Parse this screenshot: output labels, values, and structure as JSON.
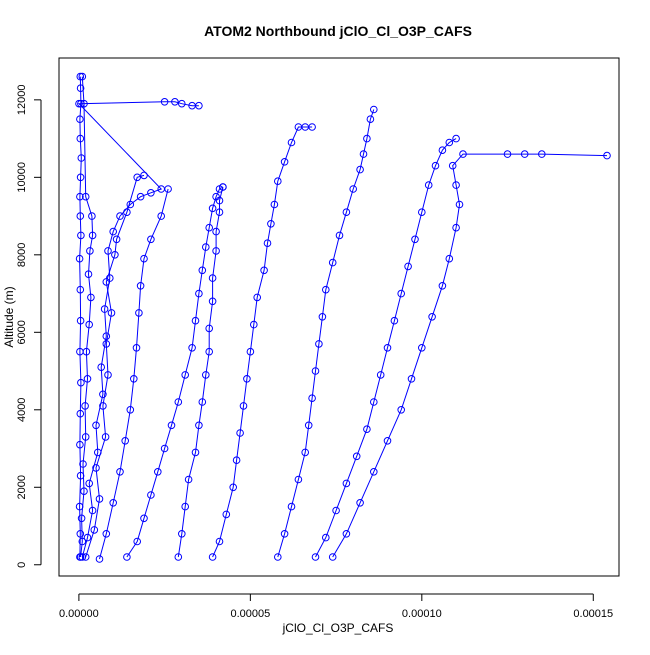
{
  "chart_data": {
    "type": "line",
    "title": "ATOM2 Northbound jClO_Cl_O3P_CAFS",
    "xlabel": "jClO_Cl_O3P_CAFS",
    "ylabel": "Altitude (m)",
    "xlim": [
      -5.8e-06,
      0.0001575
    ],
    "ylim": [
      -290,
      13080
    ],
    "x_ticks": [
      0,
      5e-05,
      0.0001,
      0.00015
    ],
    "x_tick_labels": [
      "0.00000",
      "0.00005",
      "0.00010",
      "0.00015"
    ],
    "y_ticks": [
      0,
      2000,
      4000,
      6000,
      8000,
      10000,
      12000
    ],
    "y_tick_labels": [
      "0",
      "2000",
      "4000",
      "6000",
      "8000",
      "10000",
      "12000"
    ],
    "color": "#0000ff",
    "marker": "open-circle",
    "grid": false,
    "legend": "none",
    "series": [
      {
        "x": [
          3e-07,
          4e-07,
          2e-07,
          5e-07,
          3e-07,
          4e-07,
          6e-07,
          3e-07,
          5e-07,
          4e-07,
          2e-07,
          6e-07,
          4e-07,
          3e-07,
          5e-07,
          7e-07,
          4e-07,
          3e-07,
          6e-07,
          5e-07,
          4e-07
        ],
        "y": [
          200,
          800,
          1500,
          2300,
          3100,
          3900,
          4700,
          5500,
          6300,
          7100,
          7900,
          8500,
          9000,
          9500,
          10000,
          10500,
          11000,
          11500,
          11900,
          12300,
          12600
        ]
      },
      {
        "x": [
          5e-07,
          1e-06,
          8e-07,
          1.5e-06,
          1.2e-06,
          2e-06,
          1.8e-06,
          2.5e-06,
          2.2e-06,
          3e-06,
          3.5e-06,
          2.8e-06,
          3.2e-06,
          4e-06,
          3.8e-06,
          2e-06,
          1.5e-06,
          1e-06
        ],
        "y": [
          200,
          600,
          1200,
          1900,
          2600,
          3300,
          4100,
          4800,
          5500,
          6200,
          6900,
          7500,
          8100,
          8500,
          9000,
          9500,
          11900,
          12600
        ]
      },
      {
        "x": [
          1e-06,
          2.5e-06,
          4e-06,
          3e-06,
          5.5e-06,
          5e-06,
          7e-06,
          6.5e-06,
          8e-06,
          7.5e-06,
          9e-06,
          8.5e-06,
          1e-05,
          1.2e-05,
          1.5e-05,
          1.8e-05,
          2.1e-05,
          2.4e-05,
          2e-08,
          2.5e-05,
          2.8e-05,
          3e-05,
          3.3e-05,
          3.5e-05
        ],
        "y": [
          200,
          700,
          1400,
          2100,
          2900,
          3600,
          4400,
          5100,
          5900,
          6600,
          7400,
          8100,
          8600,
          9000,
          9300,
          9500,
          9600,
          9700,
          11900,
          11950,
          11950,
          11900,
          11850,
          11850
        ]
      },
      {
        "x": [
          2e-06,
          4.5e-06,
          6e-06,
          5e-06,
          7.8e-06,
          7e-06,
          8.5e-06,
          8e-06,
          9.5e-06,
          8e-06,
          1.05e-05,
          1.1e-05,
          1.4e-05,
          1.7e-05,
          1.9e-05
        ],
        "y": [
          200,
          900,
          1700,
          2500,
          3300,
          4100,
          4900,
          5700,
          6500,
          7300,
          8000,
          8400,
          9100,
          10000,
          10050
        ]
      },
      {
        "x": [
          6e-06,
          8e-06,
          1e-05,
          1.2e-05,
          1.35e-05,
          1.5e-05,
          1.6e-05,
          1.68e-05,
          1.75e-05,
          1.8e-05,
          1.9e-05,
          2.1e-05,
          2.4e-05,
          2.6e-05
        ],
        "y": [
          150,
          800,
          1600,
          2400,
          3200,
          4000,
          4800,
          5600,
          6500,
          7200,
          7900,
          8400,
          9000,
          9700
        ]
      },
      {
        "x": [
          1.4e-05,
          1.7e-05,
          1.9e-05,
          2.1e-05,
          2.3e-05,
          2.5e-05,
          2.7e-05,
          2.9e-05,
          3.1e-05,
          3.3e-05,
          3.4e-05,
          3.5e-05,
          3.6e-05,
          3.7e-05,
          3.8e-05,
          3.9e-05,
          4e-05,
          4.1e-05,
          4.2e-05
        ],
        "y": [
          200,
          600,
          1200,
          1800,
          2400,
          3000,
          3600,
          4200,
          4900,
          5600,
          6300,
          7000,
          7600,
          8200,
          8700,
          9200,
          9500,
          9700,
          9750
        ]
      },
      {
        "x": [
          2.9e-05,
          3e-05,
          3.1e-05,
          3.2e-05,
          3.4e-05,
          3.5e-05,
          3.6e-05,
          3.7e-05,
          3.8e-05,
          3.8e-05,
          3.9e-05,
          3.9e-05,
          4e-05,
          4e-05,
          4.1e-05,
          4.1e-05,
          4.2e-05
        ],
        "y": [
          200,
          800,
          1500,
          2200,
          2900,
          3600,
          4200,
          4900,
          5500,
          6100,
          6800,
          7400,
          8100,
          8600,
          9100,
          9400,
          9750
        ]
      },
      {
        "x": [
          3.9e-05,
          4.1e-05,
          4.3e-05,
          4.5e-05,
          4.6e-05,
          4.7e-05,
          4.8e-05,
          4.9e-05,
          5e-05,
          5.1e-05,
          5.2e-05,
          5.4e-05,
          5.5e-05,
          5.6e-05,
          5.7e-05,
          5.8e-05,
          6e-05,
          6.2e-05,
          6.4e-05,
          6.6e-05,
          6.8e-05
        ],
        "y": [
          200,
          600,
          1300,
          2000,
          2700,
          3400,
          4100,
          4800,
          5500,
          6200,
          6900,
          7600,
          8300,
          8800,
          9300,
          9900,
          10400,
          10900,
          11300,
          11300,
          11300
        ]
      },
      {
        "x": [
          5.8e-05,
          6e-05,
          6.2e-05,
          6.4e-05,
          6.6e-05,
          6.7e-05,
          6.8e-05,
          6.9e-05,
          7e-05,
          7.1e-05,
          7.2e-05,
          7.4e-05,
          7.6e-05,
          7.8e-05,
          8e-05,
          8.2e-05,
          8.3e-05,
          8.4e-05,
          8.5e-05,
          8.6e-05
        ],
        "y": [
          200,
          800,
          1500,
          2200,
          2900,
          3600,
          4300,
          5000,
          5700,
          6400,
          7100,
          7800,
          8500,
          9100,
          9700,
          10200,
          10600,
          11000,
          11500,
          11750
        ]
      },
      {
        "x": [
          6.9e-05,
          7.2e-05,
          7.5e-05,
          7.8e-05,
          8.1e-05,
          8.4e-05,
          8.6e-05,
          8.8e-05,
          9e-05,
          9.2e-05,
          9.4e-05,
          9.6e-05,
          9.8e-05,
          0.0001,
          0.000102,
          0.000104,
          0.000106,
          0.000108,
          0.00011
        ],
        "y": [
          200,
          700,
          1400,
          2100,
          2800,
          3500,
          4200,
          4900,
          5600,
          6300,
          7000,
          7700,
          8400,
          9100,
          9800,
          10300,
          10700,
          10900,
          11000
        ]
      },
      {
        "x": [
          7.4e-05,
          7.8e-05,
          8.2e-05,
          8.6e-05,
          9e-05,
          9.4e-05,
          9.7e-05,
          0.0001,
          0.000103,
          0.000106,
          0.000108,
          0.00011,
          0.000111,
          0.00011,
          0.000109,
          0.000112,
          0.000125,
          0.00013,
          0.000135,
          0.000154
        ],
        "y": [
          200,
          800,
          1600,
          2400,
          3200,
          4000,
          4800,
          5600,
          6400,
          7200,
          7900,
          8700,
          9300,
          9800,
          10300,
          10600,
          10600,
          10600,
          10600,
          10560
        ]
      }
    ]
  }
}
